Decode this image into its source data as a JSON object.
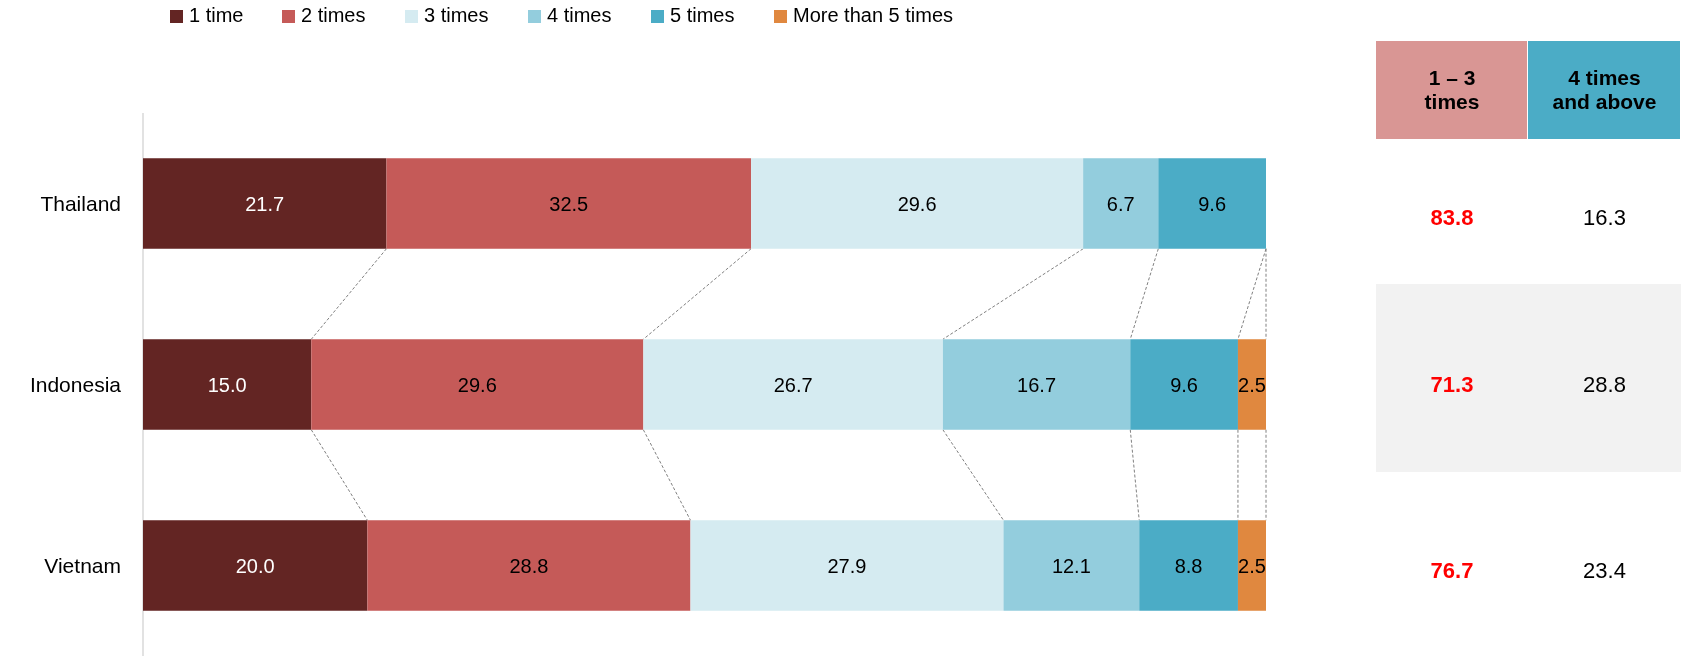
{
  "chart_data": [
    {
      "type": "bar",
      "orientation": "horizontal",
      "stacked": true,
      "categories": [
        "Thailand",
        "Indonesia",
        "Vietnam"
      ],
      "series": [
        {
          "name": "1 time",
          "color": "#632523",
          "values": [
            21.7,
            15.0,
            20.0
          ],
          "value_labels": [
            "21.7",
            "15.0",
            "20.0"
          ]
        },
        {
          "name": "2 times",
          "color": "#c55a58",
          "values": [
            32.5,
            29.6,
            28.8
          ],
          "value_labels": [
            "32.5",
            "29.6",
            "28.8"
          ]
        },
        {
          "name": "3 times",
          "color": "#d5ebf1",
          "values": [
            29.6,
            26.7,
            27.9
          ],
          "value_labels": [
            "29.6",
            "26.7",
            "27.9"
          ]
        },
        {
          "name": "4 times",
          "color": "#93cddd",
          "values": [
            6.7,
            16.7,
            12.1
          ],
          "value_labels": [
            "6.7",
            "16.7",
            "12.1"
          ]
        },
        {
          "name": "5 times",
          "color": "#4bacc6",
          "values": [
            9.6,
            9.6,
            8.8
          ],
          "value_labels": [
            "9.6",
            "9.6",
            "8.8"
          ]
        },
        {
          "name": "More than 5 times",
          "color": "#e0883f",
          "values": [
            null,
            2.5,
            2.5
          ],
          "value_labels": [
            null,
            "2.5",
            "2.5"
          ]
        }
      ],
      "xlim": [
        0,
        100.1
      ],
      "legend": "top left",
      "tick_labels": "y"
    },
    {
      "type": "other",
      "colors": [
        "#d99694",
        "#4bacc6"
      ],
      "annotations": [
        "1 – 3 times",
        "4 times and above",
        "83.8",
        "16.3",
        "71.3",
        "28.8",
        "76.7",
        "23.4"
      ]
    }
  ]
}
